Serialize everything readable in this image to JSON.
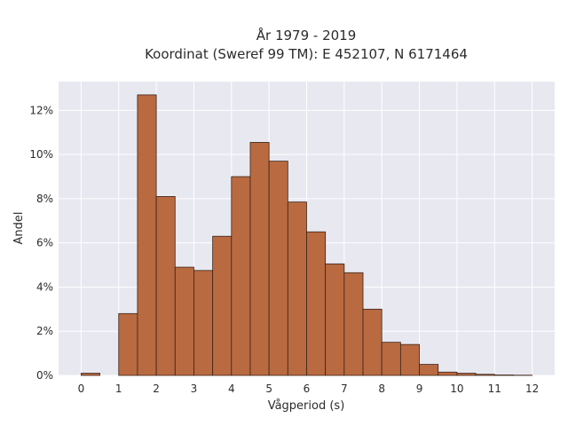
{
  "chart_data": {
    "type": "bar",
    "title": "År 1979 - 2019",
    "subtitle": "Koordinat (Sweref 99 TM): E 452107, N 6171464",
    "xlabel": "Vågperiod (s)",
    "ylabel": "Andel",
    "xlim": [
      -0.6,
      12.6
    ],
    "ylim": [
      0,
      13.3
    ],
    "x_ticks": [
      "0",
      "1",
      "2",
      "3",
      "4",
      "5",
      "6",
      "7",
      "8",
      "9",
      "10",
      "11",
      "12"
    ],
    "y_ticks": [
      "0%",
      "2%",
      "4%",
      "6%",
      "8%",
      "10%",
      "12%"
    ],
    "grid": true,
    "bar_color": "#b96a41",
    "background_color": "#e8e8f0",
    "bin_width": 0.5,
    "bins": [
      {
        "start": 0.0,
        "value": 0.1
      },
      {
        "start": 1.0,
        "value": 2.8
      },
      {
        "start": 1.5,
        "value": 12.7
      },
      {
        "start": 2.0,
        "value": 8.1
      },
      {
        "start": 2.5,
        "value": 4.9
      },
      {
        "start": 3.0,
        "value": 4.75
      },
      {
        "start": 3.5,
        "value": 6.3
      },
      {
        "start": 4.0,
        "value": 9.0
      },
      {
        "start": 4.5,
        "value": 10.55
      },
      {
        "start": 5.0,
        "value": 9.7
      },
      {
        "start": 5.5,
        "value": 7.85
      },
      {
        "start": 6.0,
        "value": 6.5
      },
      {
        "start": 6.5,
        "value": 5.05
      },
      {
        "start": 7.0,
        "value": 4.65
      },
      {
        "start": 7.5,
        "value": 3.0
      },
      {
        "start": 8.0,
        "value": 1.5
      },
      {
        "start": 8.5,
        "value": 1.4
      },
      {
        "start": 9.0,
        "value": 0.5
      },
      {
        "start": 9.5,
        "value": 0.15
      },
      {
        "start": 10.0,
        "value": 0.1
      },
      {
        "start": 10.5,
        "value": 0.05
      },
      {
        "start": 11.0,
        "value": 0.02
      },
      {
        "start": 11.5,
        "value": 0.01
      }
    ]
  }
}
